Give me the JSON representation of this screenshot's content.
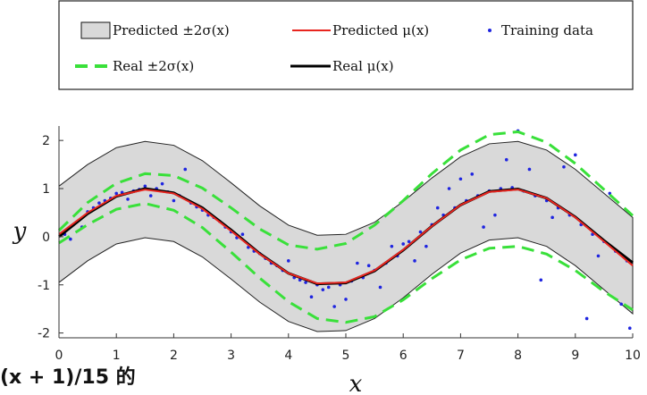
{
  "chart_data": {
    "type": "line",
    "title": "",
    "xlabel": "x",
    "ylabel": "y",
    "xlim": [
      0,
      10
    ],
    "ylim": [
      -2.1,
      2.3
    ],
    "x_ticks": [
      0,
      1,
      2,
      3,
      4,
      5,
      6,
      7,
      8,
      9,
      10
    ],
    "y_ticks": [
      2,
      1,
      0,
      -1,
      -2
    ],
    "x_tick_labels": [
      "0",
      "1",
      "2",
      "3",
      "4",
      "5",
      "6",
      "7",
      "8",
      "9",
      "10"
    ],
    "y_tick_labels": [
      "2",
      "1",
      "0",
      "-1",
      "-2"
    ],
    "grid": false,
    "legend_position": "top",
    "legend": [
      {
        "label": "Predicted ±2σ(x)",
        "kind": "band",
        "color": "#d9d9d9",
        "edge": "#222222"
      },
      {
        "label": "Predicted μ(x)",
        "kind": "line",
        "color": "#e8251f"
      },
      {
        "label": "Training data",
        "kind": "dot",
        "color": "#1f25e0"
      },
      {
        "label": "Real ±2σ(x)",
        "kind": "dashed",
        "color": "#39e03a"
      },
      {
        "label": "Real μ(x)",
        "kind": "line",
        "color": "#000000"
      }
    ],
    "series": [
      {
        "name": "Real μ(x)",
        "x": [
          0,
          0.5,
          1,
          1.5,
          2,
          2.5,
          3,
          3.5,
          4,
          4.5,
          5,
          5.5,
          6,
          6.5,
          7,
          7.5,
          8,
          8.5,
          9,
          9.5,
          10
        ],
        "y": [
          0,
          0.48,
          0.84,
          1.0,
          0.91,
          0.6,
          0.14,
          -0.35,
          -0.76,
          -0.98,
          -0.96,
          -0.71,
          -0.28,
          0.22,
          0.66,
          0.94,
          0.99,
          0.8,
          0.41,
          -0.08,
          -0.54
        ]
      },
      {
        "name": "Predicted μ(x)",
        "x": [
          0,
          0.5,
          1,
          1.5,
          2,
          2.5,
          3,
          3.5,
          4,
          4.5,
          5,
          5.5,
          6,
          6.5,
          7,
          7.5,
          8,
          8.5,
          9,
          9.5,
          10
        ],
        "y": [
          0.05,
          0.5,
          0.85,
          0.98,
          0.9,
          0.58,
          0.12,
          -0.36,
          -0.76,
          -0.97,
          -0.95,
          -0.7,
          -0.27,
          0.22,
          0.66,
          0.93,
          0.98,
          0.8,
          0.4,
          -0.1,
          -0.6
        ]
      },
      {
        "name": "Predicted ±2σ(x) upper",
        "x": [
          0,
          0.5,
          1,
          1.5,
          2,
          2.5,
          3,
          3.5,
          4,
          4.5,
          5,
          5.5,
          6,
          6.5,
          7,
          7.5,
          8,
          8.5,
          9,
          9.5,
          10
        ],
        "y": [
          1.05,
          1.5,
          1.85,
          1.98,
          1.9,
          1.58,
          1.12,
          0.64,
          0.24,
          0.03,
          0.05,
          0.3,
          0.73,
          1.22,
          1.66,
          1.93,
          1.98,
          1.8,
          1.4,
          0.9,
          0.4
        ]
      },
      {
        "name": "Predicted ±2σ(x) lower",
        "x": [
          0,
          0.5,
          1,
          1.5,
          2,
          2.5,
          3,
          3.5,
          4,
          4.5,
          5,
          5.5,
          6,
          6.5,
          7,
          7.5,
          8,
          8.5,
          9,
          9.5,
          10
        ],
        "y": [
          -0.95,
          -0.5,
          -0.15,
          -0.02,
          -0.1,
          -0.42,
          -0.88,
          -1.36,
          -1.76,
          -1.97,
          -1.95,
          -1.7,
          -1.27,
          -0.78,
          -0.34,
          -0.07,
          -0.02,
          -0.2,
          -0.6,
          -1.1,
          -1.6
        ]
      },
      {
        "name": "Real ±2σ(x) upper",
        "x": [
          0,
          0.5,
          1,
          1.5,
          2,
          2.5,
          3,
          3.5,
          4,
          4.5,
          5,
          5.5,
          6,
          6.5,
          7,
          7.5,
          8,
          8.5,
          9,
          9.5,
          10
        ],
        "y": [
          0.13,
          0.71,
          1.11,
          1.31,
          1.27,
          1.01,
          0.6,
          0.16,
          -0.17,
          -0.26,
          -0.14,
          0.24,
          0.75,
          1.31,
          1.8,
          2.12,
          2.18,
          1.96,
          1.52,
          0.98,
          0.44
        ]
      },
      {
        "name": "Real ±2σ(x) lower",
        "x": [
          0,
          0.5,
          1,
          1.5,
          2,
          2.5,
          3,
          3.5,
          4,
          4.5,
          5,
          5.5,
          6,
          6.5,
          7,
          7.5,
          8,
          8.5,
          9,
          9.5,
          10
        ],
        "y": [
          -0.13,
          0.25,
          0.57,
          0.69,
          0.55,
          0.19,
          -0.32,
          -0.86,
          -1.35,
          -1.7,
          -1.78,
          -1.66,
          -1.31,
          -0.87,
          -0.48,
          -0.24,
          -0.2,
          -0.36,
          -0.7,
          -1.14,
          -1.52
        ]
      }
    ],
    "training_data": {
      "name": "Training data",
      "x": [
        0.1,
        0.3,
        0.5,
        0.7,
        0.9,
        1.1,
        1.3,
        1.5,
        1.7,
        1.9,
        2.1,
        2.3,
        2.5,
        2.7,
        2.9,
        3.1,
        3.3,
        3.5,
        3.7,
        3.9,
        4.1,
        4.3,
        4.5,
        4.7,
        4.9,
        5.1,
        5.3,
        5.5,
        5.7,
        5.9,
        6.1,
        6.3,
        6.5,
        6.7,
        6.9,
        7.1,
        7.3,
        7.5,
        7.7,
        7.9,
        8.1,
        8.3,
        8.5,
        8.7,
        8.9,
        9.1,
        9.3,
        9.5,
        9.7,
        9.9,
        0.2,
        0.6,
        1.0,
        1.4,
        1.8,
        2.2,
        2.6,
        3.0,
        3.4,
        3.8,
        4.2,
        4.6,
        5.0,
        5.4,
        5.8,
        6.2,
        6.6,
        7.0,
        7.4,
        7.8,
        8.2,
        8.6,
        9.0,
        9.4,
        9.8,
        0.4,
        0.8,
        1.2,
        1.6,
        2.0,
        2.4,
        2.8,
        3.2,
        3.6,
        4.0,
        4.4,
        4.8,
        5.2,
        5.6,
        6.0,
        6.4,
        6.8,
        7.2,
        7.6,
        8.0,
        8.4,
        8.8,
        9.2,
        9.6,
        9.95
      ],
      "y": [
        0.05,
        0.3,
        0.52,
        0.7,
        0.8,
        0.92,
        0.95,
        1.05,
        1.0,
        0.93,
        0.85,
        0.7,
        0.55,
        0.4,
        0.2,
        -0.02,
        -0.22,
        -0.35,
        -0.55,
        -0.7,
        -0.85,
        -0.95,
        -1.0,
        -1.05,
        -1.0,
        -0.92,
        -0.85,
        -0.7,
        -0.55,
        -0.4,
        -0.1,
        0.1,
        0.25,
        0.45,
        0.6,
        0.75,
        0.85,
        0.95,
        1.0,
        1.02,
        0.95,
        0.85,
        0.75,
        0.6,
        0.45,
        0.25,
        0.05,
        -0.1,
        -0.3,
        -0.5,
        -0.05,
        0.6,
        0.9,
        0.98,
        1.1,
        1.4,
        0.45,
        0.1,
        -0.3,
        -0.6,
        -0.9,
        -1.1,
        -1.3,
        -0.6,
        -0.2,
        -0.5,
        0.6,
        1.2,
        0.2,
        1.6,
        1.4,
        0.4,
        1.7,
        -0.4,
        -1.4,
        0.2,
        0.75,
        0.78,
        0.85,
        0.75,
        0.62,
        0.32,
        0.05,
        -0.45,
        -0.5,
        -1.25,
        -1.45,
        -0.55,
        -1.05,
        -0.15,
        -0.2,
        1.0,
        1.3,
        0.45,
        2.2,
        -0.9,
        1.45,
        -1.7,
        0.9,
        -1.9
      ]
    }
  }
}
